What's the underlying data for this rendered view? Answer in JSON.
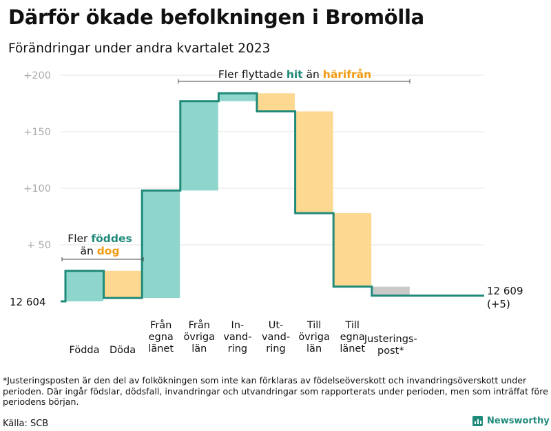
{
  "title": "Därför ökade befolkningen i Bromölla",
  "subtitle": "Förändringar under andra kvartalet 2023",
  "footnote": "*Justeringsposten är den del av folkökningen som inte kan förklaras av födelseöverskott och invandringsöverskott under perioden. Där ingår födslar, dödsfall, invandringar och utvandringar som rapporterats under perioden, men som inträffat före periodens början.",
  "source": "Källa: SCB",
  "brand": "Newsworthy",
  "chart_data": {
    "type": "waterfall",
    "title": "Därför ökade befolkningen i Bromölla",
    "subtitle": "Förändringar under andra kvartalet 2023",
    "start_value": 12604,
    "start_label": "12  604",
    "end_value": 12609,
    "end_label": "12 609",
    "end_change_label": "(+5)",
    "ylim": [
      0,
      200
    ],
    "yticks": [
      {
        "value": 200,
        "label": "+200"
      },
      {
        "value": 150,
        "label": "+150"
      },
      {
        "value": 100,
        "label": "+100"
      },
      {
        "value": 50,
        "label": "+  50"
      }
    ],
    "steps": [
      {
        "label": "Födda",
        "lines": [
          "Födda"
        ],
        "change": 27,
        "kind": "in"
      },
      {
        "label": "Döda",
        "lines": [
          "Döda"
        ],
        "change": -24,
        "kind": "out"
      },
      {
        "label": "Från egna länet",
        "lines": [
          "Från",
          "egna",
          "länet"
        ],
        "change": 95,
        "kind": "in"
      },
      {
        "label": "Från övriga län",
        "lines": [
          "Från",
          "övriga",
          "län"
        ],
        "change": 79,
        "kind": "in"
      },
      {
        "label": "Invandring",
        "lines": [
          "In-",
          "vand-",
          "ring"
        ],
        "change": 7,
        "kind": "in"
      },
      {
        "label": "Utvandring",
        "lines": [
          "Ut-",
          "vand-",
          "ring"
        ],
        "change": -16,
        "kind": "out"
      },
      {
        "label": "Till övriga län",
        "lines": [
          "Till",
          "övriga",
          "län"
        ],
        "change": -90,
        "kind": "out"
      },
      {
        "label": "Till egna länet",
        "lines": [
          "Till",
          "egna",
          "länet"
        ],
        "change": -65,
        "kind": "out"
      },
      {
        "label": "Justeringspost*",
        "lines": [
          "Justerings-",
          "post*"
        ],
        "change": -8,
        "kind": "adj"
      }
    ],
    "annotations": [
      {
        "id": "births",
        "parts": [
          {
            "text": "Fler ",
            "c": "text"
          },
          {
            "text": "föddes",
            "c": "in"
          },
          {
            "text": "än ",
            "c": "text"
          },
          {
            "text": "dog",
            "c": "out"
          }
        ]
      },
      {
        "id": "migration",
        "parts": [
          {
            "text": "Fler flyttade ",
            "c": "text"
          },
          {
            "text": "hit",
            "c": "in"
          },
          {
            "text": " än ",
            "c": "text"
          },
          {
            "text": "härifrån",
            "c": "out"
          }
        ]
      }
    ],
    "colors": {
      "in_fill": "#8ed6cb",
      "out_fill": "#fdd890",
      "adj_fill": "#c9c9c9",
      "line": "#1f8a7a",
      "in_text": "#1f8a7a",
      "out_text": "#f29b12",
      "text": "#111111",
      "grid": "#e3e3e3",
      "tick": "#aaaaaa"
    }
  }
}
